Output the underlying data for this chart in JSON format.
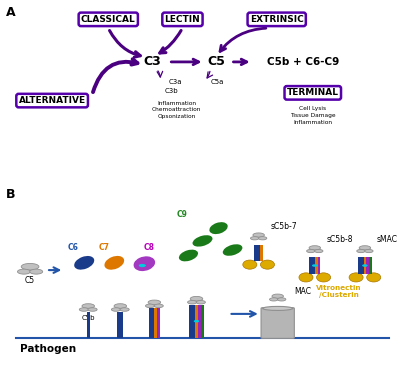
{
  "bg_color": "#ffffff",
  "purple": "#5500aa",
  "dark_purple": "#4a0080",
  "blue": "#2255aa",
  "orange": "#dd7700",
  "green": "#228822",
  "light_gray": "#c0c0c0",
  "mid_gray": "#a8a8a8",
  "cyan": "#00ccdd",
  "magenta": "#bb00bb",
  "yellow": "#ddaa00",
  "navy": "#1a3a8a",
  "green_dark": "#1a7a1a",
  "panel_A_label": "A",
  "panel_B_label": "B",
  "pathogen_label": "Pathogen",
  "boxes": [
    "CLASSICAL",
    "LECTIN",
    "EXTRINSIC",
    "ALTERNATIVE",
    "TERMINAL"
  ],
  "inflammation_text": "Inflammation\nChemoattraction\nOpsonization",
  "terminal_text": "Cell Lysis\nTissue Damage\nInflammation",
  "vitronectin_text": "Vitronectin\n/Clusterin"
}
